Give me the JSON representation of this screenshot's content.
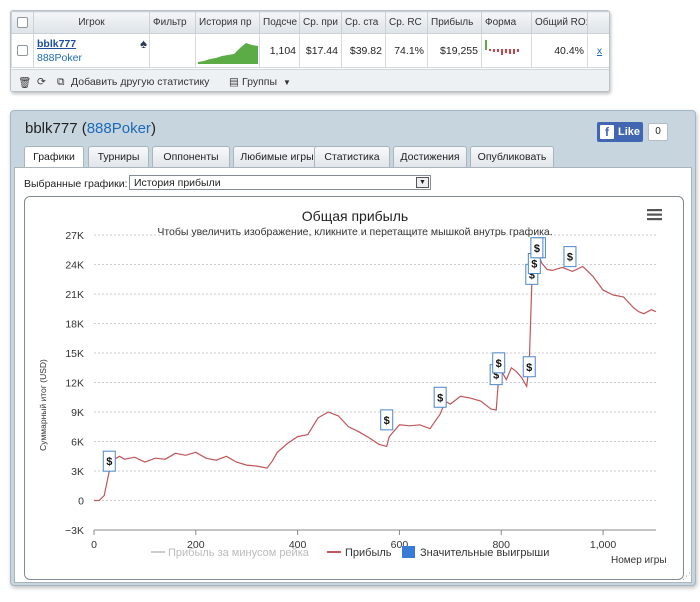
{
  "stats_widget": {
    "headers": [
      "Игрок",
      "Фильтр",
      "История пр",
      "Подсче",
      "Ср. при",
      "Ср. ста",
      "Ср. RC",
      "Прибыль",
      "Форма",
      "Общий RO:"
    ],
    "row": {
      "player_name": "bblk777",
      "network": "888Poker",
      "filter": "",
      "count": "1,104",
      "avg_profit": "$17.44",
      "avg_stake": "$39.82",
      "avg_roi": "74.1%",
      "profit": "$19,255",
      "total_roi": "40.4%",
      "remove": "x"
    },
    "footer": {
      "add_stat": "Добавить другую статистику",
      "groups": "Группы"
    }
  },
  "panel": {
    "player_name": "bblk777",
    "network": "888Poker",
    "fb_like": "Like",
    "fb_count": "0",
    "tabs": [
      "Графики",
      "Турниры",
      "Оппоненты",
      "Любимые игры",
      "Статистика",
      "Достижения",
      "Опубликовать"
    ],
    "active_tab": 0,
    "chart_selector_label": "Выбранные графики:",
    "chart_selector_value": "История прибыли"
  },
  "colors": {
    "profit_line": "#c0565a",
    "rake_line": "#cccccc",
    "big_wins": "#3a7bd5",
    "link": "#1d6ab8"
  },
  "chart_data": {
    "type": "line",
    "title": "Общая прибыль",
    "subtitle": "Чтобы увеличить изображение, кликните и перетащите мышкой внутрь графика.",
    "xlabel": "Номер игры",
    "ylabel": "Суммарный итог (USD)",
    "xlim": [
      0,
      1104
    ],
    "ylim": [
      -3000,
      27000
    ],
    "x_ticks": [
      "0",
      "200",
      "400",
      "600",
      "800",
      "1,000"
    ],
    "y_ticks": [
      "−3K",
      "0",
      "3K",
      "6K",
      "9K",
      "12K",
      "15K",
      "18K",
      "21K",
      "24K",
      "27K"
    ],
    "legend": [
      "Прибыль за минусом рейка",
      "Прибыль",
      "Значительные выигрыши"
    ],
    "series": [
      {
        "name": "Прибыль",
        "x": [
          0,
          10,
          20,
          30,
          35,
          40,
          50,
          60,
          80,
          100,
          120,
          140,
          160,
          180,
          200,
          220,
          240,
          260,
          280,
          300,
          320,
          340,
          350,
          360,
          380,
          400,
          420,
          440,
          460,
          480,
          500,
          520,
          540,
          560,
          575,
          580,
          600,
          620,
          640,
          660,
          680,
          690,
          700,
          720,
          740,
          760,
          780,
          790,
          795,
          800,
          810,
          820,
          830,
          840,
          850,
          855,
          860,
          865,
          870,
          875,
          880,
          890,
          900,
          920,
          940,
          960,
          980,
          1000,
          1020,
          1040,
          1060,
          1070,
          1080,
          1095,
          1104
        ],
        "y": [
          0,
          0,
          500,
          3000,
          4300,
          4200,
          4500,
          4200,
          4400,
          3900,
          4300,
          4200,
          4800,
          4600,
          4900,
          4300,
          4100,
          4500,
          3900,
          3600,
          3500,
          3300,
          4000,
          4900,
          5800,
          6500,
          6700,
          8400,
          9000,
          8600,
          7500,
          7000,
          6400,
          5700,
          5500,
          6500,
          7700,
          7600,
          7700,
          7300,
          8800,
          10100,
          9800,
          10600,
          10400,
          10100,
          9300,
          9200,
          12500,
          13200,
          12300,
          13500,
          13100,
          12500,
          11600,
          13800,
          22000,
          24600,
          25600,
          24700,
          24100,
          23500,
          23400,
          23700,
          23300,
          23800,
          22800,
          21400,
          20900,
          20700,
          19600,
          19200,
          19000,
          19400,
          19200
        ]
      }
    ],
    "big_wins": [
      {
        "x": 30,
        "y": 4000
      },
      {
        "x": 575,
        "y": 8200
      },
      {
        "x": 680,
        "y": 10500
      },
      {
        "x": 790,
        "y": 12800
      },
      {
        "x": 795,
        "y": 14000
      },
      {
        "x": 855,
        "y": 13600
      },
      {
        "x": 860,
        "y": 23000
      },
      {
        "x": 865,
        "y": 24100
      },
      {
        "x": 875,
        "y": 25700
      },
      {
        "x": 870,
        "y": 25700
      },
      {
        "x": 935,
        "y": 24800
      }
    ]
  }
}
